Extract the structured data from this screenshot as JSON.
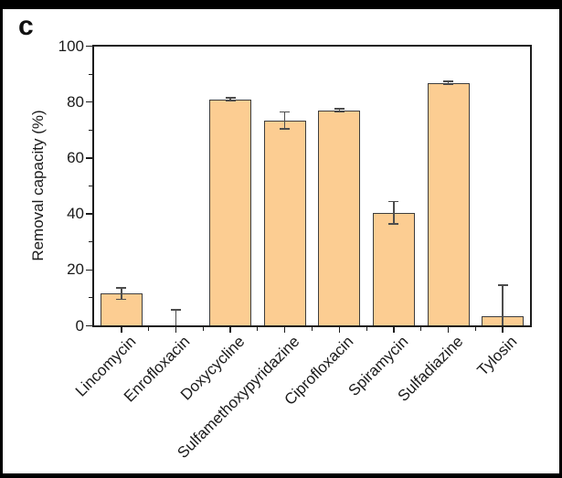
{
  "panel_label": "c",
  "colors": {
    "bar_fill": "#FCCD92",
    "bar_edge": "#3D3D3D",
    "error_bar": "#4D4D4D",
    "axis": "#1C1C1C",
    "figure_border": "#000000",
    "background": "#FFFFFF"
  },
  "chart_data": {
    "type": "bar",
    "title": "",
    "xlabel": "",
    "ylabel": "Removal capacity (%)",
    "categories": [
      "Lincomycin",
      "Enrofloxacin",
      "Doxycycline",
      "Sulfamethoxypyridazine",
      "Ciprofloxacin",
      "Spiramycin",
      "Sulfadiazine",
      "Tylosin"
    ],
    "values": [
      11.5,
      0.2,
      81,
      73.5,
      77,
      40.5,
      86.8,
      3.5
    ],
    "errors": [
      2,
      5.5,
      0.5,
      3,
      0.6,
      4,
      0.6,
      11
    ],
    "ylim": [
      0,
      100
    ],
    "yticks": [
      0,
      20,
      40,
      60,
      80,
      100
    ],
    "ytick_minor_interval": 10,
    "grid": false,
    "legend": "none",
    "error_bars": true,
    "x_label_rotation_deg": 45
  }
}
